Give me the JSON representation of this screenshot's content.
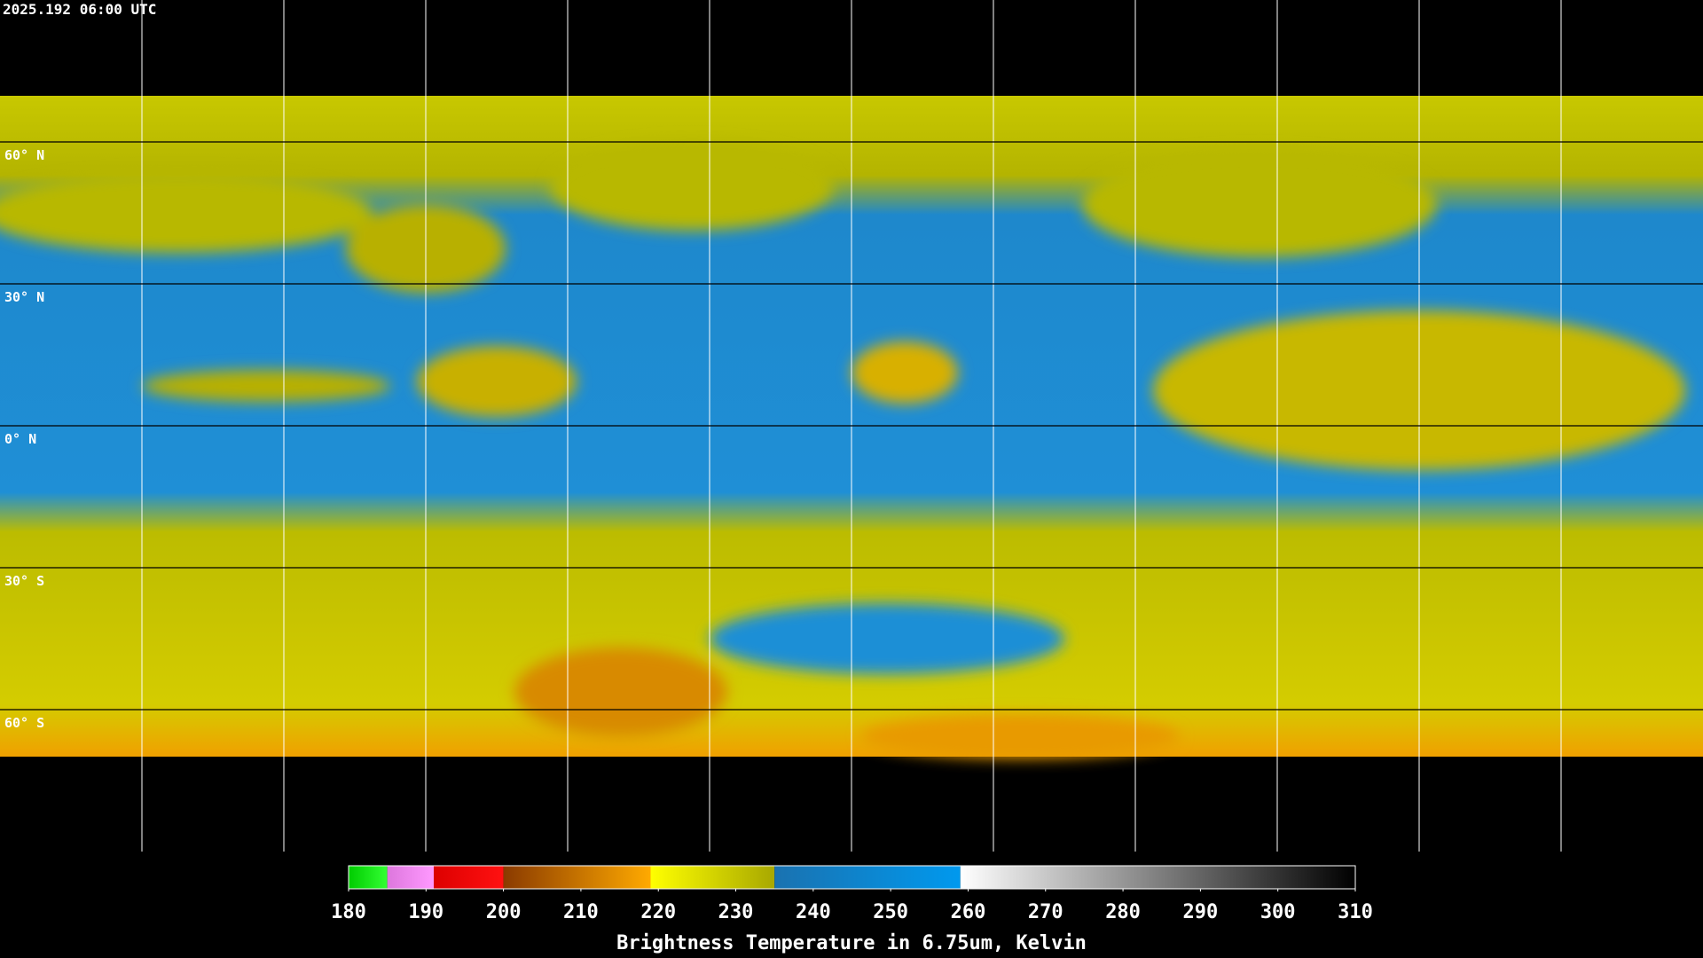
{
  "header": {
    "timestamp": "2025.192 06:00 UTC"
  },
  "map": {
    "lat_range": [
      90,
      -90
    ],
    "lat_lines": [
      {
        "value": 60,
        "label": "60° N"
      },
      {
        "value": 30,
        "label": "30° N"
      },
      {
        "value": 0,
        "label": "0° N"
      },
      {
        "value": -30,
        "label": "30° S"
      },
      {
        "value": -60,
        "label": "60° S"
      }
    ]
  },
  "colorbar": {
    "title": "Brightness Temperature in 6.75um, Kelvin",
    "range": [
      180,
      310
    ],
    "ticks": [
      180,
      190,
      200,
      210,
      220,
      230,
      240,
      250,
      260,
      270,
      280,
      290,
      300,
      310
    ],
    "segments": [
      {
        "from": 180,
        "to": 185,
        "colors": [
          "#00cc00",
          "#33ff33"
        ]
      },
      {
        "from": 185,
        "to": 191,
        "colors": [
          "#dd77dd",
          "#ff99ff"
        ]
      },
      {
        "from": 191,
        "to": 200,
        "colors": [
          "#dd0000",
          "#ff1111"
        ]
      },
      {
        "from": 200,
        "to": 219,
        "colors": [
          "#8a3a00",
          "#ffaa00"
        ]
      },
      {
        "from": 219,
        "to": 235,
        "colors": [
          "#ffff00",
          "#a8a800"
        ]
      },
      {
        "from": 235,
        "to": 259,
        "colors": [
          "#1a72b0",
          "#0099ee"
        ]
      },
      {
        "from": 259,
        "to": 310,
        "colors": [
          "#ffffff",
          "#000000"
        ]
      }
    ]
  }
}
